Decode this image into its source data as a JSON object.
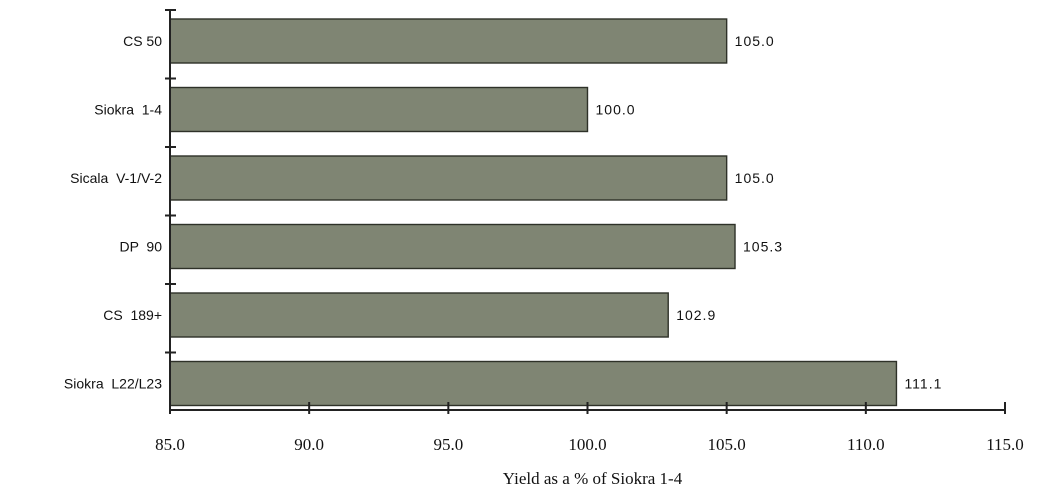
{
  "chart_data": {
    "type": "bar",
    "orientation": "horizontal",
    "categories": [
      "CS 50",
      "Siokra  1-4",
      "Sicala  V-1/V-2",
      "DP  90",
      "CS  189+",
      "Siokra  L22/L23"
    ],
    "values": [
      105.0,
      100.0,
      105.0,
      105.3,
      102.9,
      111.1
    ],
    "value_labels": [
      "105.0",
      "100.0",
      "105.0",
      "105.3",
      "102.9",
      "111.1"
    ],
    "xlabel": "Yield as a % of Siokra 1-4",
    "ylabel": "",
    "title": "",
    "xlim": [
      85.0,
      115.0
    ],
    "xticks": [
      85.0,
      90.0,
      95.0,
      100.0,
      105.0,
      110.0,
      115.0
    ],
    "xtick_labels": [
      "85.0",
      "90.0",
      "95.0",
      "100.0",
      "105.0",
      "110.0",
      "115.0"
    ],
    "grid": false,
    "bar_color": "#7f8573"
  }
}
